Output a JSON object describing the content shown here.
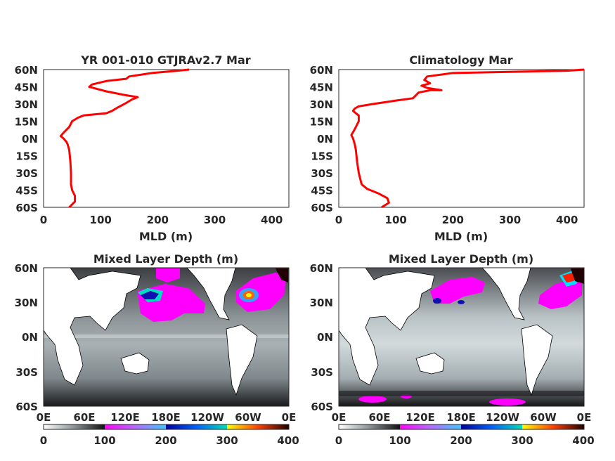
{
  "chart_data": [
    {
      "type": "line",
      "title": "YR 001-010 GTJRAv2.7 Mar",
      "xlabel": "MLD (m)",
      "ylabel": "",
      "xlim": [
        0,
        430
      ],
      "ylim": [
        -60,
        60
      ],
      "xticks": [
        "0",
        "100",
        "200",
        "300",
        "400"
      ],
      "yticks": [
        "60N",
        "45N",
        "30N",
        "15N",
        "0N",
        "15S",
        "30S",
        "45S",
        "60S"
      ],
      "line_color": "#ff0000",
      "grid": false,
      "series": [
        {
          "x": [
            45,
            55,
            55,
            50,
            48,
            48,
            47,
            45,
            42,
            40,
            35,
            30,
            35,
            45,
            50,
            60,
            70,
            110,
            120,
            130,
            145,
            155,
            165,
            140,
            110,
            95,
            80,
            85,
            110,
            145,
            150,
            190,
            235,
            255
          ],
          "y": [
            -60,
            -55,
            -50,
            -45,
            -40,
            -30,
            -20,
            -10,
            -5,
            -3,
            0,
            2,
            5,
            10,
            15,
            18,
            20,
            22,
            24,
            27,
            31,
            34,
            36,
            38,
            41,
            43,
            45,
            47,
            50,
            52,
            54,
            57,
            59,
            60
          ]
        }
      ]
    },
    {
      "type": "line",
      "title": "Climatology Mar",
      "xlabel": "MLD (m)",
      "ylabel": "",
      "xlim": [
        0,
        430
      ],
      "ylim": [
        -60,
        60
      ],
      "xticks": [
        "0",
        "100",
        "200",
        "300",
        "400"
      ],
      "yticks": [
        "60N",
        "45N",
        "30N",
        "15N",
        "0N",
        "15S",
        "30S",
        "45S",
        "60S"
      ],
      "line_color": "#ff0000",
      "grid": false,
      "series": [
        {
          "x": [
            75,
            88,
            85,
            70,
            50,
            40,
            35,
            32,
            30,
            28,
            25,
            22,
            28,
            35,
            35,
            30,
            25,
            28,
            35,
            60,
            100,
            130,
            140,
            160,
            180,
            155,
            145,
            160,
            150,
            155,
            200,
            300,
            400,
            430
          ],
          "y": [
            -60,
            -56,
            -52,
            -48,
            -44,
            -40,
            -30,
            -20,
            -10,
            -5,
            0,
            3,
            8,
            15,
            20,
            22,
            24,
            26,
            28,
            30,
            33,
            35,
            40,
            42,
            42,
            44,
            46,
            48,
            51,
            54,
            57,
            58,
            59,
            60
          ]
        }
      ]
    },
    {
      "type": "heatmap",
      "title": "Mixed Layer Depth (m)",
      "xlabel": "",
      "ylabel": "",
      "xticks": [
        "0E",
        "60E",
        "120E",
        "180E",
        "120W",
        "60W",
        "0E"
      ],
      "yticks": [
        "60N",
        "30N",
        "0N",
        "30S",
        "60S"
      ],
      "colorbar": {
        "ticks": [
          "0",
          "100",
          "200",
          "300",
          "400"
        ],
        "range": [
          0,
          400
        ]
      }
    },
    {
      "type": "heatmap",
      "title": "Mixed Layer Depth (m)",
      "xlabel": "",
      "ylabel": "",
      "xticks": [
        "0E",
        "60E",
        "120E",
        "180E",
        "120W",
        "60W",
        "0E"
      ],
      "yticks": [
        "60N",
        "30N",
        "0N",
        "30S",
        "60S"
      ],
      "colorbar": {
        "ticks": [
          "0",
          "100",
          "200",
          "300",
          "400"
        ],
        "range": [
          0,
          400
        ]
      }
    }
  ]
}
